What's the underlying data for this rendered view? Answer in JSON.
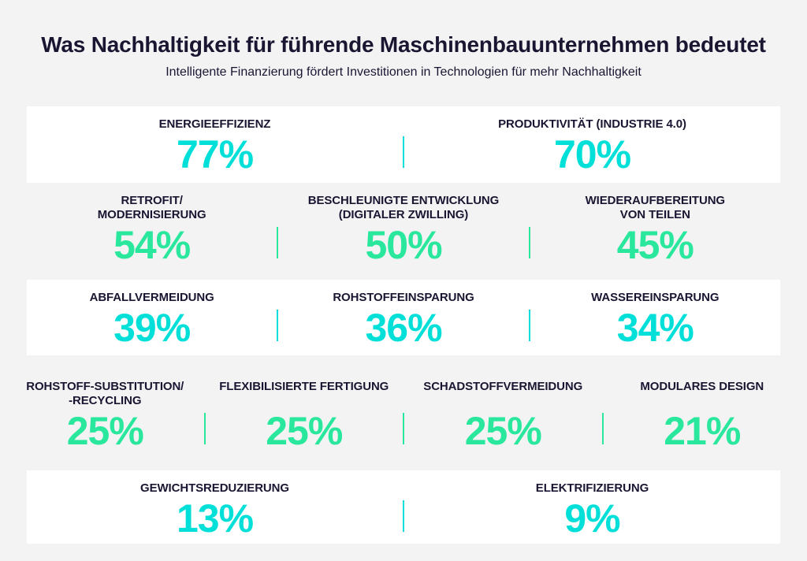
{
  "page": {
    "title": "Was Nachhaltigkeit für führende Maschinenbauunternehmen bedeutet",
    "subtitle": "Intelligente Finanzierung fördert Investitionen in Technologien für mehr Nachhaltigkeit"
  },
  "colors": {
    "background": "#f4f3f4",
    "card": "#ffffff",
    "heading": "#1a1632",
    "cyan": "#00dfd8",
    "mint": "#29e79c"
  },
  "rows": [
    {
      "style": "card",
      "accent": "cyan",
      "items": [
        {
          "label": "ENERGIEEFFIZIENZ",
          "value": "77%"
        },
        {
          "label": "PRODUKTIVITÄT (INDUSTRIE 4.0)",
          "value": "70%"
        }
      ]
    },
    {
      "style": "plain",
      "accent": "mint",
      "items": [
        {
          "label": "RETROFIT/",
          "label2": "MODERNISIERUNG",
          "value": "54%"
        },
        {
          "label": "BESCHLEUNIGTE ENTWICKLUNG",
          "label2": "(DIGITALER ZWILLING)",
          "value": "50%"
        },
        {
          "label": "WIEDERAUFBEREITUNG",
          "label2": "VON TEILEN",
          "value": "45%"
        }
      ]
    },
    {
      "style": "card",
      "accent": "cyan",
      "items": [
        {
          "label": "ABFALLVERMEIDUNG",
          "value": "39%"
        },
        {
          "label": "ROHSTOFFEINSPARUNG",
          "value": "36%"
        },
        {
          "label": "WASSEREINSPARUNG",
          "value": "34%"
        }
      ]
    },
    {
      "style": "plain",
      "accent": "mint",
      "items": [
        {
          "label": "ROHSTOFF-SUBSTITUTION/",
          "label2": "-RECYCLING",
          "value": "25%"
        },
        {
          "label": "FLEXIBILISIERTE FERTIGUNG",
          "value": "25%"
        },
        {
          "label": "SCHADSTOFFVERMEIDUNG",
          "value": "25%"
        },
        {
          "label": "MODULARES DESIGN",
          "value": "21%"
        }
      ]
    },
    {
      "style": "card",
      "accent": "cyan",
      "items": [
        {
          "label": "GEWICHTSREDUZIERUNG",
          "value": "13%"
        },
        {
          "label": "ELEKTRIFIZIERUNG",
          "value": "9%"
        }
      ]
    }
  ],
  "chart_data": {
    "type": "table",
    "title": "Was Nachhaltigkeit für führende Maschinenbauunternehmen bedeutet",
    "subtitle": "Intelligente Finanzierung fördert Investitionen in Technologien für mehr Nachhaltigkeit",
    "unit": "%",
    "categories": [
      "Energieeffizienz",
      "Produktivität (Industrie 4.0)",
      "Retrofit/Modernisierung",
      "Beschleunigte Entwicklung (Digitaler Zwilling)",
      "Wiederaufbereitung von Teilen",
      "Abfallvermeidung",
      "Rohstoffeinsparung",
      "Wassereinsparung",
      "Rohstoff-Substitution/-Recycling",
      "Flexibilisierte Fertigung",
      "Schadstoffvermeidung",
      "Modulares Design",
      "Gewichtsreduzierung",
      "Elektrifizierung"
    ],
    "values": [
      77,
      70,
      54,
      50,
      45,
      39,
      36,
      34,
      25,
      25,
      25,
      21,
      13,
      9
    ]
  }
}
